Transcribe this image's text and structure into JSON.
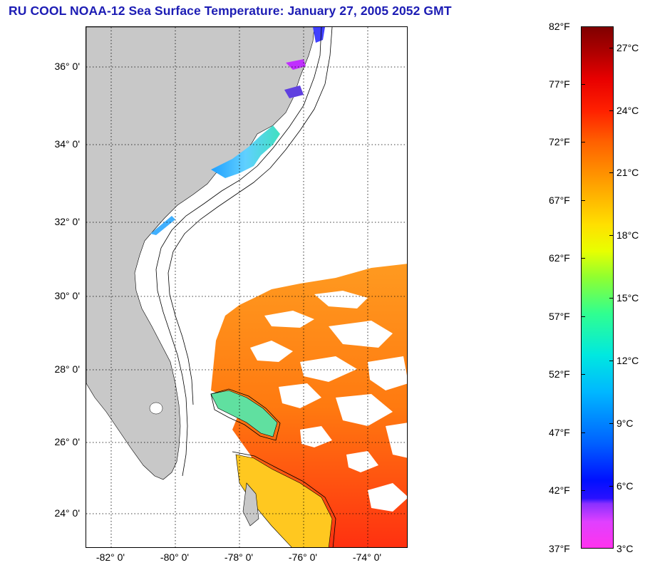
{
  "title": "RU COOL  NOAA-12  Sea Surface Temperature:  January 27, 2005 2052 GMT",
  "map": {
    "lat_labels": [
      "36° 0'",
      "34° 0'",
      "32° 0'",
      "30° 0'",
      "28° 0'",
      "26° 0'",
      "24° 0'"
    ],
    "lon_labels": [
      "-82° 0'",
      "-80° 0'",
      "-78° 0'",
      "-76° 0'",
      "-74° 0'"
    ],
    "colors": {
      "land": "#c8c8c8",
      "cloud": "#ffffff",
      "grid": "#000000"
    }
  },
  "colorbar": {
    "fahrenheit_labels": [
      "82°F",
      "77°F",
      "72°F",
      "67°F",
      "62°F",
      "57°F",
      "52°F",
      "47°F",
      "42°F",
      "37°F"
    ],
    "celsius_labels": [
      "27°C",
      "24°C",
      "21°C",
      "18°C",
      "15°C",
      "12°C",
      "9°C",
      "6°C",
      "3°C"
    ]
  }
}
